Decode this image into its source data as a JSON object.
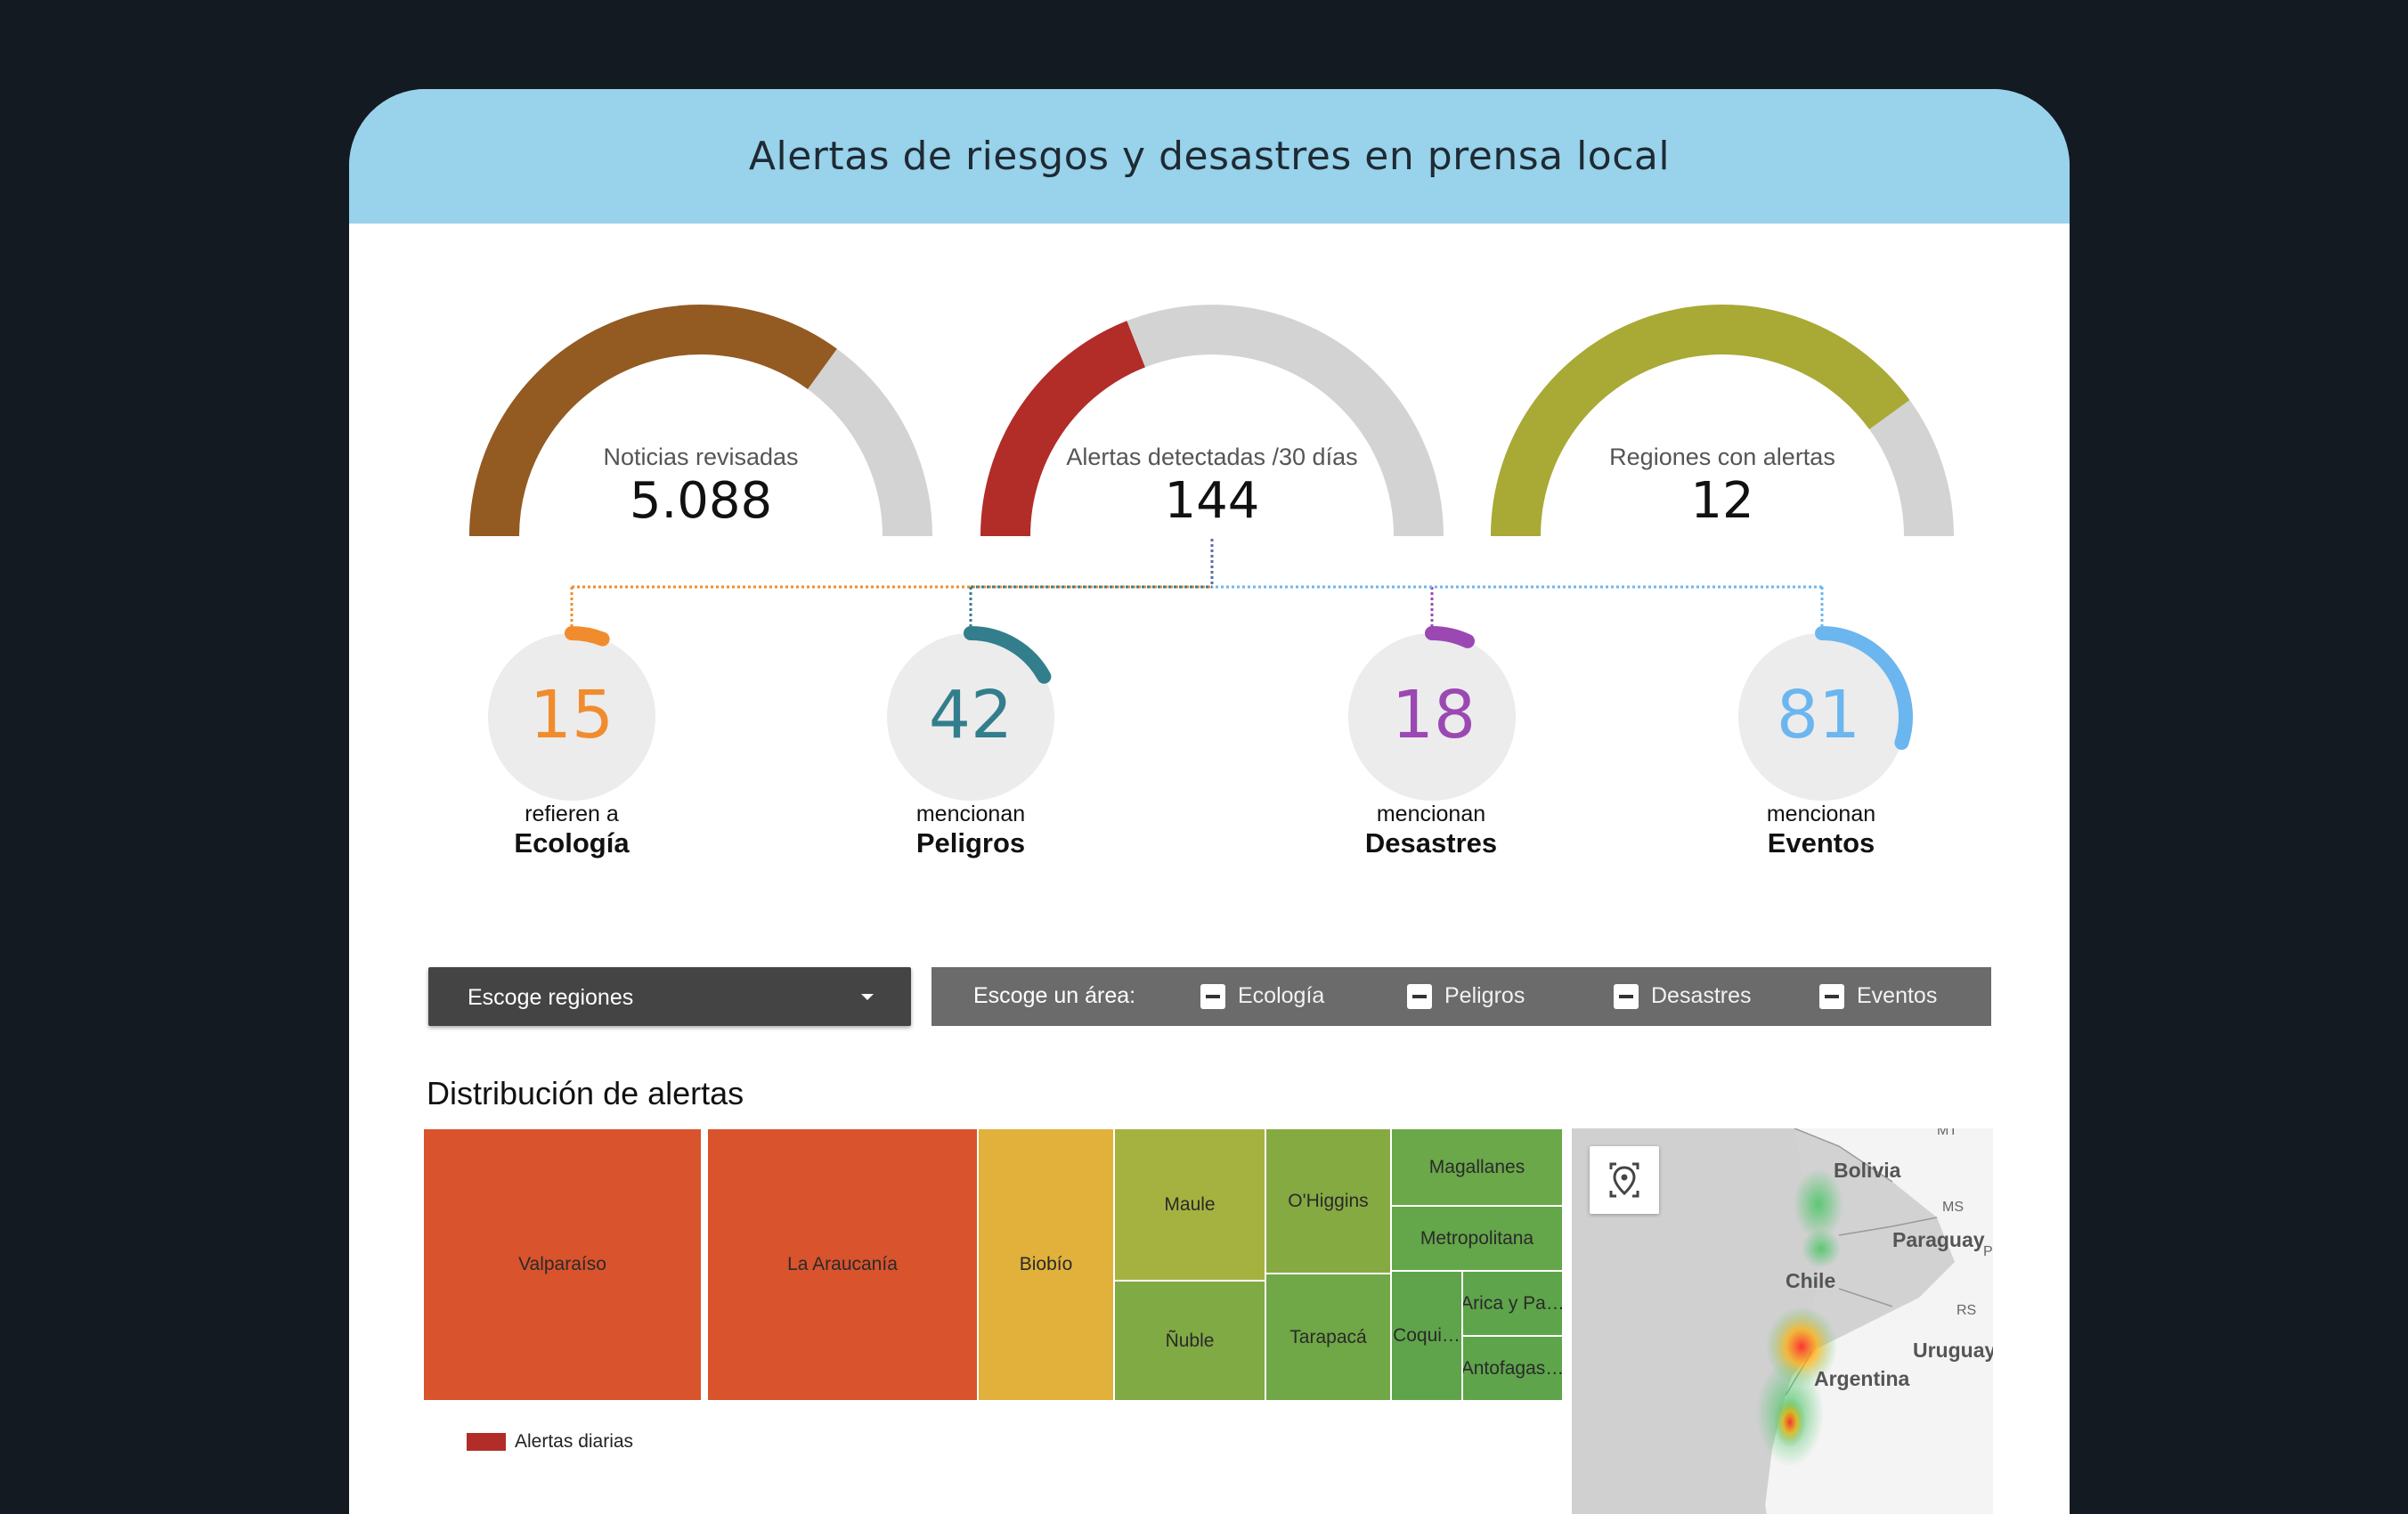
{
  "header": {
    "title": "Alertas de riesgos y desastres en prensa local"
  },
  "gauges": [
    {
      "label": "Noticias revisadas",
      "value": "5.088",
      "fraction": 0.7,
      "color": "#935a22"
    },
    {
      "label": "Alertas detectadas /30 días",
      "value": "144",
      "fraction": 0.38,
      "color": "#b22c28"
    },
    {
      "label": "Regiones con alertas",
      "value": "12",
      "fraction": 0.8,
      "color": "#a9a935"
    }
  ],
  "kpis": [
    {
      "value": "15",
      "sub": "refieren a",
      "category": "Ecología",
      "color": "#f18c2e",
      "fraction": 0.06
    },
    {
      "value": "42",
      "sub": "mencionan",
      "category": "Peligros",
      "color": "#327e8c",
      "fraction": 0.17
    },
    {
      "value": "18",
      "sub": "mencionan",
      "category": "Desastres",
      "color": "#9b48b3",
      "fraction": 0.07
    },
    {
      "value": "81",
      "sub": "mencionan",
      "category": "Eventos",
      "color": "#6cb6ef",
      "fraction": 0.3
    }
  ],
  "filters": {
    "region_select_label": "Escoge regiones",
    "area_label": "Escoge un área:",
    "areas": [
      "Ecología",
      "Peligros",
      "Desastres",
      "Eventos"
    ]
  },
  "distribution": {
    "title": "Distribución de alertas",
    "legend_label": "Alertas diarias",
    "legend_color": "#b22c28",
    "regions": [
      "Valparaíso",
      "La Araucanía",
      "Biobío",
      "Maule",
      "Ñuble",
      "O'Higgins",
      "Tarapacá",
      "Magallanes",
      "Metropolitana",
      "Coqui…",
      "Arica y Pa…",
      "Antofagas…"
    ]
  },
  "map": {
    "labels": [
      "Bolivia",
      "Paraguay",
      "Chile",
      "Uruguay",
      "Argentina"
    ],
    "small_labels": [
      "MT",
      "MS",
      "RS",
      "P"
    ],
    "icon": "locate-icon"
  }
}
